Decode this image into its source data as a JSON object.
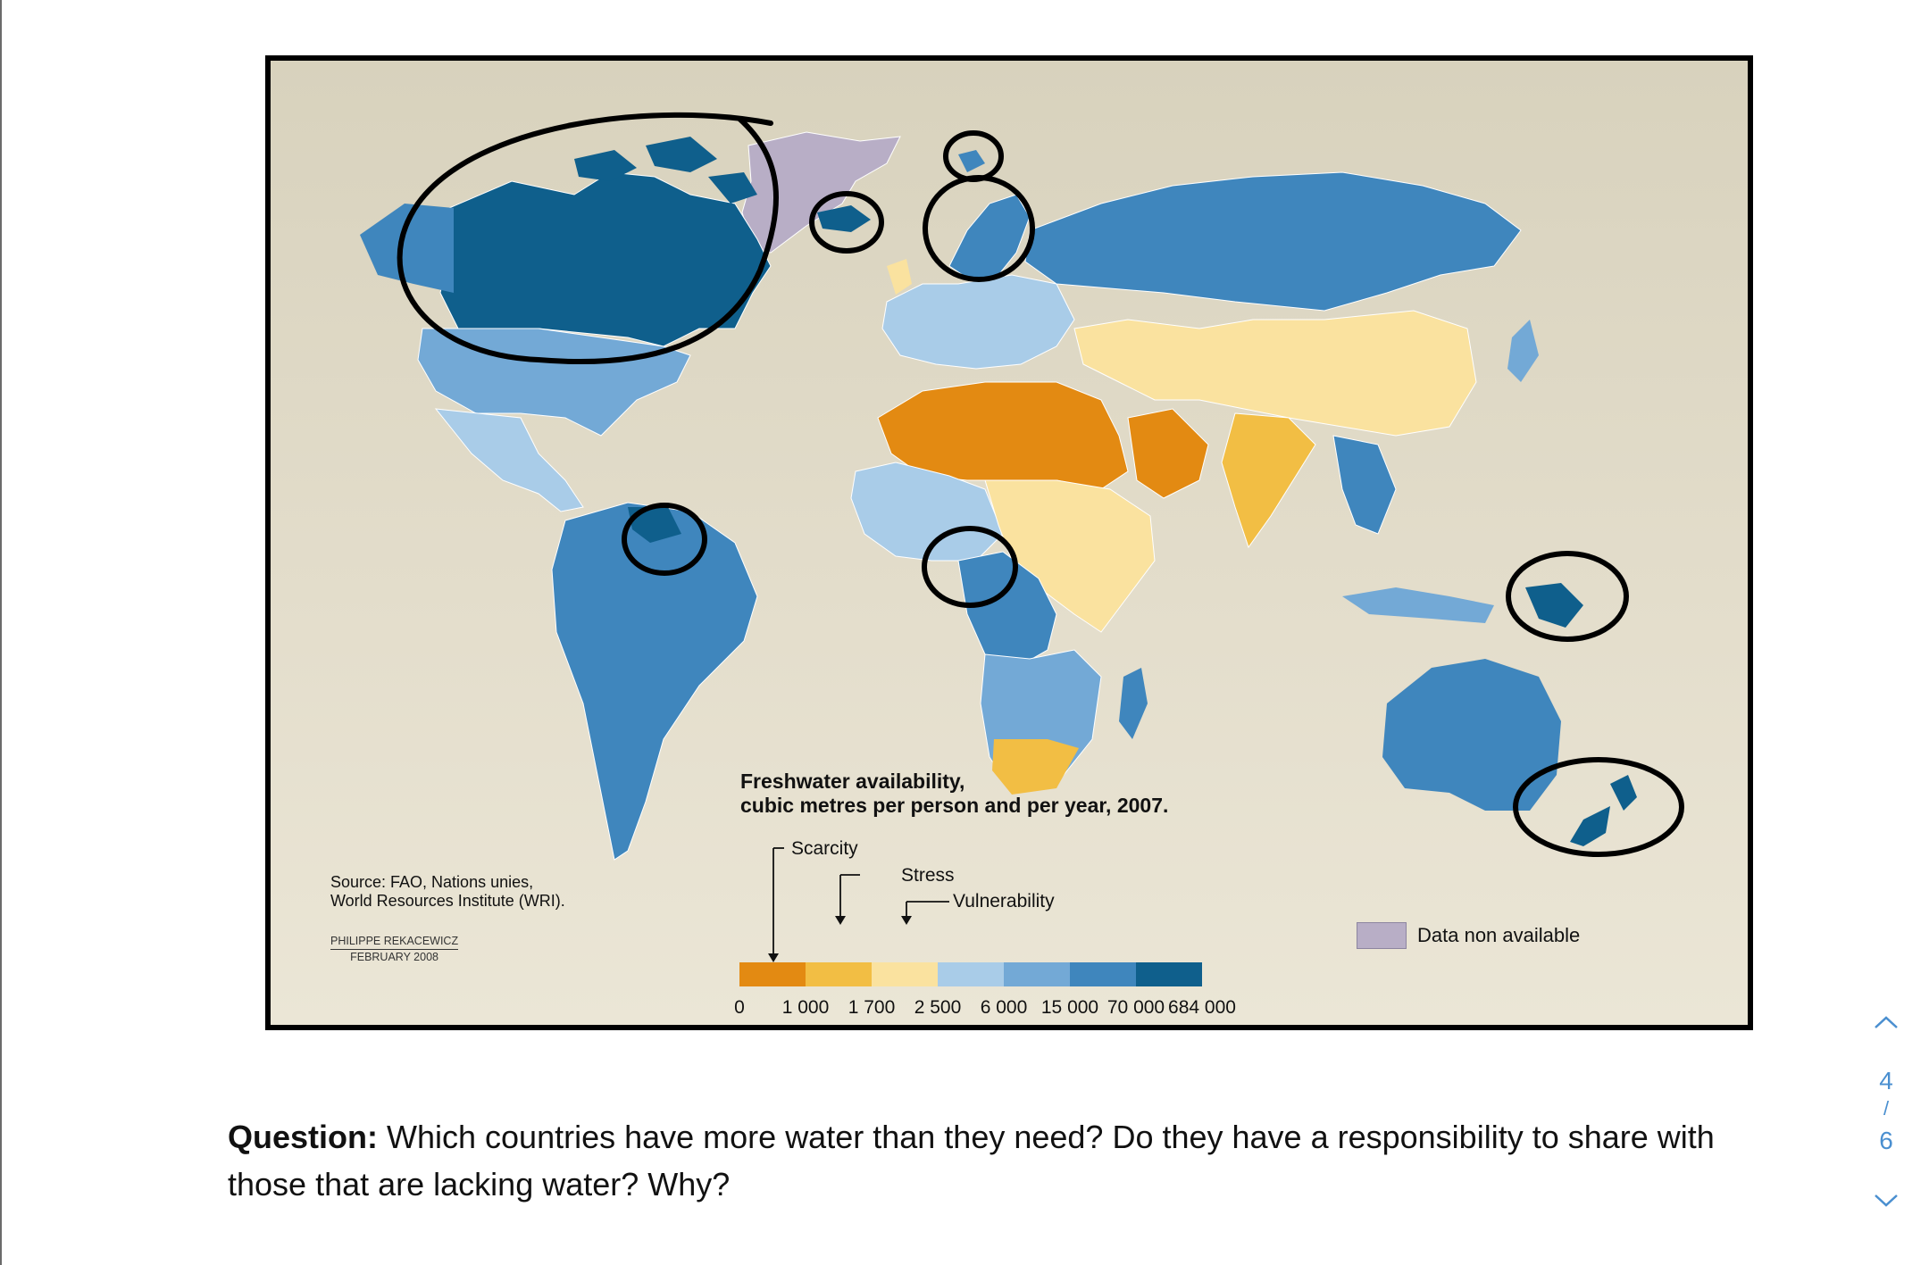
{
  "map": {
    "legend_title_line1": "Freshwater availability,",
    "legend_title_line2": "cubic metres per person and per year, 2007.",
    "labels": {
      "scarcity": "Scarcity",
      "stress": "Stress",
      "vulnerability": "Vulnerability"
    },
    "scale_ticks": [
      "0",
      "1 000",
      "1 700",
      "2 500",
      "6 000",
      "15 000",
      "70 000",
      "684 000"
    ],
    "scale_colors": [
      "#e38a12",
      "#f2be44",
      "#fae29f",
      "#a9cce8",
      "#73a9d6",
      "#3f86bd",
      "#0f5f8c"
    ],
    "no_data_label": "Data non available",
    "no_data_color": "#b8aec6",
    "source_line1": "Source: FAO, Nations unies,",
    "source_line2": "World Resources Institute (WRI).",
    "author": "PHILIPPE REKACEWICZ",
    "date": "FEBRUARY 2008",
    "annotation_color": "#000000"
  },
  "question": {
    "label": "Question:",
    "text": " Which countries have more water than they need? Do they have a responsibility to share with those that are lacking water? Why?"
  },
  "pager": {
    "current": "4",
    "separator": "/",
    "total": "6",
    "accent_color": "#4a8fd0"
  }
}
